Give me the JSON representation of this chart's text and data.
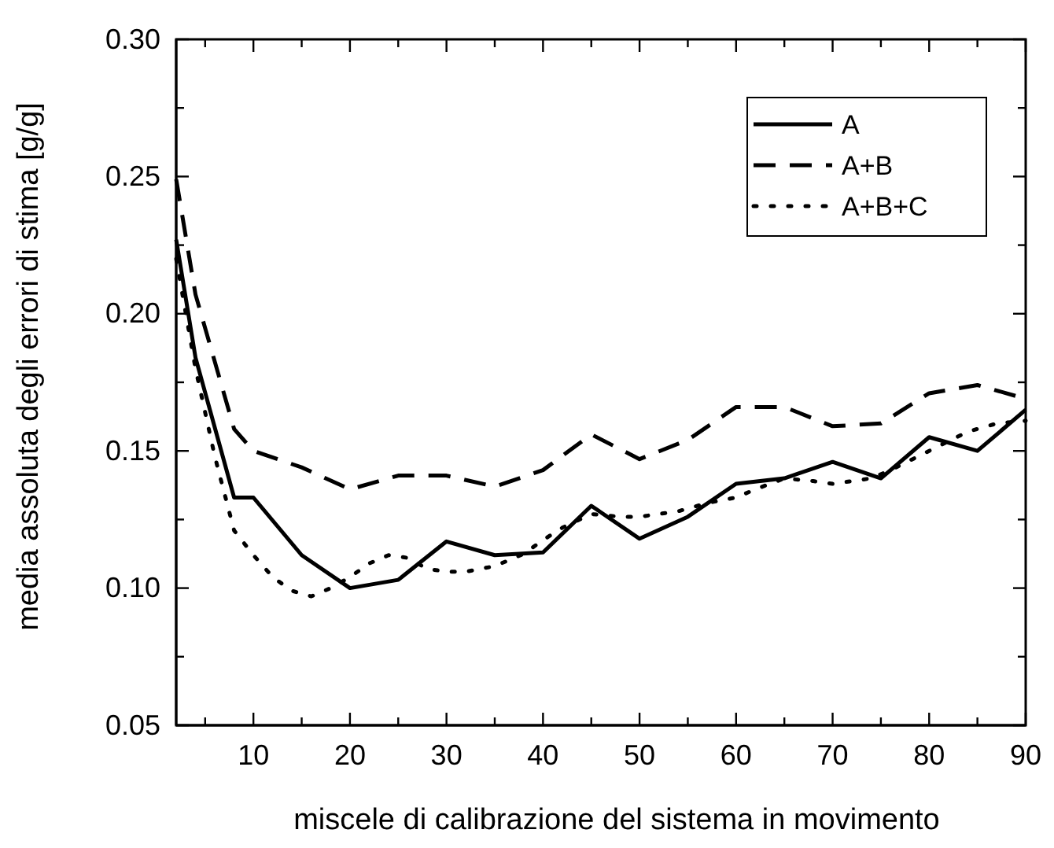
{
  "chart_data": {
    "type": "line",
    "xlabel": "miscele di calibrazione del sistema in movimento",
    "ylabel": "media assoluta degli errori di stima [g/g]",
    "xlim": [
      2,
      90
    ],
    "ylim": [
      0.05,
      0.3
    ],
    "xticks": [
      {
        "value": 5,
        "label": null
      },
      10,
      {
        "value": 15,
        "label": null
      },
      20,
      {
        "value": 25,
        "label": null
      },
      30,
      {
        "value": 35,
        "label": null
      },
      40,
      {
        "value": 45,
        "label": null
      },
      50,
      {
        "value": 55,
        "label": null
      },
      60,
      {
        "value": 65,
        "label": null
      },
      70,
      {
        "value": 75,
        "label": null
      },
      80,
      {
        "value": 85,
        "label": null
      },
      90
    ],
    "yticks": [
      {
        "value": 0.05,
        "label": "0.05"
      },
      {
        "value": 0.075,
        "label": null
      },
      {
        "value": 0.1,
        "label": "0.10"
      },
      {
        "value": 0.125,
        "label": null
      },
      {
        "value": 0.15,
        "label": "0.15"
      },
      {
        "value": 0.175,
        "label": null
      },
      {
        "value": 0.2,
        "label": "0.20"
      },
      {
        "value": 0.225,
        "label": null
      },
      {
        "value": 0.25,
        "label": "0.25"
      },
      {
        "value": 0.275,
        "label": null
      },
      {
        "value": 0.3,
        "label": "0.30"
      }
    ],
    "legend": "top right",
    "grid": false,
    "marker": "none",
    "series": [
      {
        "name": "A",
        "color": "#000000",
        "line_style": "solid",
        "x": [
          2,
          4,
          8,
          10,
          15,
          20,
          25,
          30,
          35,
          40,
          45,
          50,
          55,
          60,
          65,
          70,
          75,
          80,
          85,
          90
        ],
        "values": [
          0.227,
          0.184,
          0.133,
          0.133,
          0.112,
          0.1,
          0.103,
          0.117,
          0.112,
          0.113,
          0.13,
          0.118,
          0.126,
          0.138,
          0.14,
          0.146,
          0.14,
          0.155,
          0.15,
          0.165
        ]
      },
      {
        "name": "A+B",
        "color": "#000000",
        "line_style": "dashed",
        "x": [
          2,
          4,
          8,
          10,
          15,
          20,
          25,
          30,
          35,
          40,
          45,
          50,
          55,
          60,
          65,
          70,
          75,
          80,
          85,
          90
        ],
        "values": [
          0.249,
          0.207,
          0.158,
          0.15,
          0.144,
          0.136,
          0.141,
          0.141,
          0.137,
          0.143,
          0.156,
          0.147,
          0.154,
          0.166,
          0.166,
          0.159,
          0.16,
          0.171,
          0.174,
          0.169
        ]
      },
      {
        "name": "A+B+C",
        "color": "#000000",
        "line_style": "dotted",
        "x": [
          2,
          4,
          6,
          8,
          10,
          12,
          14,
          16,
          18,
          20,
          22,
          24,
          26,
          28,
          30,
          32,
          35,
          38,
          40,
          42,
          45,
          48,
          50,
          54,
          57,
          60,
          62,
          65,
          68,
          70,
          74,
          76,
          80,
          84,
          87,
          90
        ],
        "values": [
          0.22,
          0.18,
          0.148,
          0.121,
          0.112,
          0.104,
          0.099,
          0.097,
          0.1,
          0.104,
          0.109,
          0.112,
          0.111,
          0.107,
          0.106,
          0.106,
          0.108,
          0.1125,
          0.1175,
          0.122,
          0.127,
          0.126,
          0.126,
          0.128,
          0.131,
          0.133,
          0.136,
          0.14,
          0.139,
          0.138,
          0.14,
          0.143,
          0.15,
          0.157,
          0.16,
          0.161
        ]
      }
    ]
  }
}
